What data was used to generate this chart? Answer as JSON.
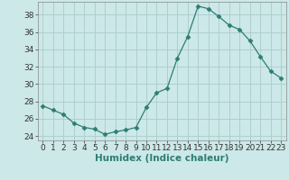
{
  "x": [
    0,
    1,
    2,
    3,
    4,
    5,
    6,
    7,
    8,
    9,
    10,
    11,
    12,
    13,
    14,
    15,
    16,
    17,
    18,
    19,
    20,
    21,
    22,
    23
  ],
  "y": [
    27.5,
    27.0,
    26.5,
    25.5,
    25.0,
    24.8,
    24.2,
    24.5,
    24.7,
    25.0,
    27.3,
    29.0,
    29.5,
    33.0,
    35.5,
    39.0,
    38.7,
    37.8,
    36.8,
    36.3,
    35.0,
    33.2,
    31.5,
    30.7
  ],
  "line_color": "#2e7d72",
  "marker": "D",
  "marker_size": 2.5,
  "bg_color": "#cce8e8",
  "grid_color": "#aacccc",
  "xlabel": "Humidex (Indice chaleur)",
  "xlim": [
    -0.5,
    23.5
  ],
  "ylim": [
    23.5,
    39.5
  ],
  "yticks": [
    24,
    26,
    28,
    30,
    32,
    34,
    36,
    38
  ],
  "xticks": [
    0,
    1,
    2,
    3,
    4,
    5,
    6,
    7,
    8,
    9,
    10,
    11,
    12,
    13,
    14,
    15,
    16,
    17,
    18,
    19,
    20,
    21,
    22,
    23
  ],
  "tick_fontsize": 6.5,
  "label_fontsize": 7.5
}
